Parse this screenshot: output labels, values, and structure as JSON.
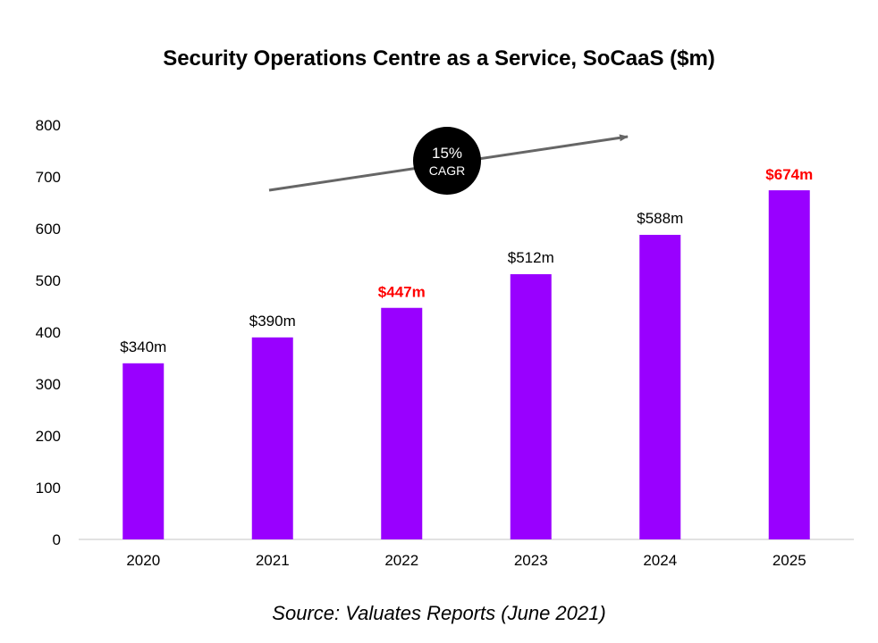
{
  "title": "Security Operations Centre as a Service, SoCaaS ($m)",
  "source": "Source: Valuates Reports (June 2021)",
  "colors": {
    "bar": "#9900ff",
    "highlight_label": "#ff0000",
    "normal_label": "#000000",
    "arrow": "#666666",
    "badge": "#000000",
    "axis": "#d9d9d9"
  },
  "cagr": {
    "value": "15%",
    "label": "CAGR"
  },
  "chart_data": {
    "type": "bar",
    "categories": [
      "2020",
      "2021",
      "2022",
      "2023",
      "2024",
      "2025"
    ],
    "values": [
      340,
      390,
      447,
      512,
      588,
      674
    ],
    "data_labels": [
      "$340m",
      "$390m",
      "$447m",
      "$512m",
      "$588m",
      "$674m"
    ],
    "highlighted": [
      false,
      false,
      true,
      false,
      false,
      true
    ],
    "title": "Security Operations Centre as a Service, SoCaaS ($m)",
    "xlabel": "",
    "ylabel": "",
    "ylim": [
      0,
      800
    ],
    "yticks": [
      0,
      100,
      200,
      300,
      400,
      500,
      600,
      700,
      800
    ],
    "grid": false,
    "legend": "none"
  }
}
